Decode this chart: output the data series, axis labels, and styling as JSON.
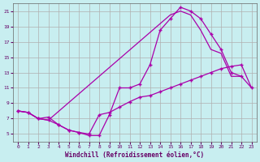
{
  "bg_color": "#c8eef0",
  "grid_color": "#b0b0b0",
  "line_color": "#aa00aa",
  "marker": "+",
  "xlabel": "Windchill (Refroidissement éolien,°C)",
  "xlim": [
    -0.5,
    23.5
  ],
  "ylim": [
    4,
    22
  ],
  "yticks": [
    5,
    7,
    9,
    11,
    13,
    15,
    17,
    19,
    21
  ],
  "xticks": [
    0,
    1,
    2,
    3,
    4,
    5,
    6,
    7,
    8,
    9,
    10,
    11,
    12,
    13,
    14,
    15,
    16,
    17,
    18,
    19,
    20,
    21,
    22,
    23
  ],
  "line1_x": [
    0,
    1,
    2,
    3,
    4,
    5,
    6,
    7,
    8,
    9,
    10,
    11,
    12,
    13,
    14,
    15,
    16,
    17,
    18,
    19,
    20,
    21,
    22,
    23
  ],
  "line1_y": [
    8.0,
    7.8,
    7.0,
    6.8,
    6.2,
    5.5,
    5.2,
    5.0,
    7.5,
    7.8,
    8.5,
    9.2,
    9.8,
    10.0,
    10.5,
    11.0,
    11.5,
    12.0,
    12.5,
    13.0,
    13.5,
    13.8,
    14.0,
    11.0
  ],
  "line2_x": [
    0,
    1,
    2,
    3,
    4,
    5,
    6,
    7,
    8,
    9,
    10,
    11,
    12,
    13,
    14,
    15,
    16,
    17,
    18,
    19,
    20,
    21,
    22
  ],
  "line2_y": [
    8.0,
    7.8,
    7.0,
    7.2,
    6.2,
    5.5,
    5.2,
    4.8,
    4.8,
    7.5,
    11.0,
    11.0,
    11.5,
    14.0,
    18.5,
    20.0,
    21.5,
    21.0,
    20.0,
    18.0,
    16.0,
    13.0,
    12.5
  ],
  "line3_x": [
    0,
    1,
    2,
    3,
    15,
    16,
    17,
    18,
    19,
    20,
    21,
    22,
    23
  ],
  "line3_y": [
    8.0,
    7.8,
    7.0,
    6.8,
    20.5,
    21.0,
    20.5,
    18.5,
    16.0,
    15.5,
    12.5,
    12.5,
    11.0
  ],
  "figsize": [
    3.2,
    2.0
  ],
  "dpi": 100
}
